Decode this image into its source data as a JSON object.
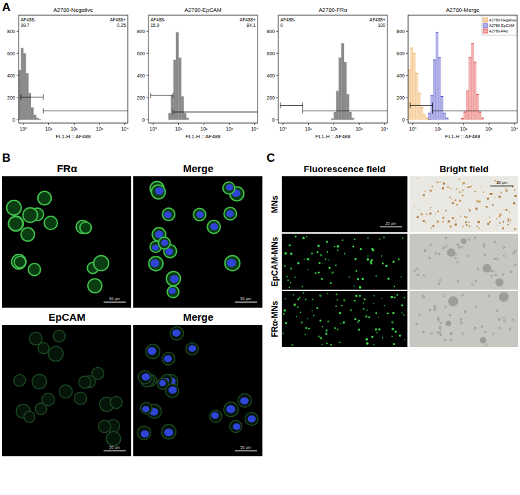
{
  "panel_labels": [
    "A",
    "B",
    "C"
  ],
  "chart_data": [
    {
      "type": "histogram",
      "title": "A2780-Negative",
      "x_label": "FL1-H :: AF488",
      "log": "x",
      "xlim": [
        0.65,
        13000
      ],
      "ylim": [
        -30,
        945
      ],
      "xticks": [
        {
          "value": 1,
          "label": "10⁰"
        },
        {
          "value": 10,
          "label": "10¹"
        },
        {
          "value": 100,
          "label": "10²"
        },
        {
          "value": 1000,
          "label": "10³"
        },
        {
          "value": 10000,
          "label": "10⁴"
        }
      ],
      "yticks": [
        0,
        200,
        400,
        600,
        800
      ],
      "bins": [
        0.631,
        0.794,
        1,
        1.259,
        1.585,
        1.995,
        2.512,
        3.162,
        3.981,
        5.012,
        6.31,
        7.943,
        10,
        12.59,
        15.85,
        19.95,
        25.12,
        31.62,
        39.81,
        50.12,
        63.1,
        79.43,
        100,
        125.9,
        158.5,
        199.5,
        251.2,
        316.2,
        398.1,
        501.2,
        631,
        794.3,
        1000,
        1259,
        1585
      ],
      "values": [
        450,
        650,
        600,
        420,
        240,
        110,
        45,
        15,
        5,
        0,
        0,
        0,
        0,
        0,
        0,
        0,
        0,
        0,
        0,
        0,
        0,
        0,
        0,
        0,
        0,
        0,
        0,
        0,
        0,
        0,
        0,
        0,
        0,
        0
      ],
      "color": "#8a8a8a",
      "gate": {
        "x": 6,
        "y": [
          205,
          80
        ]
      },
      "gate_labels": [
        {
          "label": "AF488-",
          "value": 99.7
        },
        {
          "label": "AF488+",
          "value": 0.25
        }
      ]
    },
    {
      "type": "histogram",
      "title": "A2780-EpCAM",
      "x_label": "FL1-H :: AF488",
      "log": "x",
      "xlim": [
        0.65,
        13000
      ],
      "ylim": [
        -30,
        945
      ],
      "xticks": [
        {
          "value": 1,
          "label": "10⁰"
        },
        {
          "value": 10,
          "label": "10¹"
        },
        {
          "value": 100,
          "label": "10²"
        },
        {
          "value": 1000,
          "label": "10³"
        },
        {
          "value": 10000,
          "label": "10⁴"
        }
      ],
      "yticks": [
        0,
        200,
        400,
        600,
        800
      ],
      "bins": [
        0.631,
        0.794,
        1,
        1.259,
        1.585,
        1.995,
        2.512,
        3.162,
        3.981,
        5.012,
        6.31,
        7.943,
        10,
        12.59,
        15.85,
        19.95,
        25.12,
        31.62,
        39.81,
        50.12,
        63.1,
        79.43,
        100,
        125.9,
        158.5,
        199.5,
        251.2,
        316.2,
        398.1,
        501.2,
        631,
        794.3,
        1000,
        1259,
        1585
      ],
      "values": [
        0,
        0,
        0,
        0,
        0,
        0,
        0,
        0,
        60,
        220,
        540,
        790,
        560,
        210,
        60,
        15,
        0,
        0,
        0,
        0,
        0,
        0,
        0,
        0,
        0,
        0,
        0,
        0,
        0,
        0,
        0,
        0,
        0,
        0
      ],
      "color": "#8a8a8a",
      "gate": {
        "x": 6,
        "y": [
          220,
          70
        ]
      },
      "gate_labels": [
        {
          "label": "AF488-",
          "value": 15.9
        },
        {
          "label": "AF488+",
          "value": 84.1
        }
      ]
    },
    {
      "type": "histogram",
      "title": "A2780-FRα",
      "x_label": "FL1-H :: AF488",
      "log": "x",
      "xlim": [
        0.65,
        13000
      ],
      "ylim": [
        -30,
        945
      ],
      "xticks": [
        {
          "value": 1,
          "label": "10⁰"
        },
        {
          "value": 10,
          "label": "10¹"
        },
        {
          "value": 100,
          "label": "10²"
        },
        {
          "value": 1000,
          "label": "10³"
        },
        {
          "value": 10000,
          "label": "10⁴"
        }
      ],
      "yticks": [
        0,
        200,
        400,
        600,
        800
      ],
      "bins": [
        0.631,
        0.794,
        1,
        1.259,
        1.585,
        1.995,
        2.512,
        3.162,
        3.981,
        5.012,
        6.31,
        7.943,
        10,
        12.59,
        15.85,
        19.95,
        25.12,
        31.62,
        39.81,
        50.12,
        63.1,
        79.43,
        100,
        125.9,
        158.5,
        199.5,
        251.2,
        316.2,
        398.1,
        501.2,
        631,
        794.3,
        1000,
        1259,
        1585
      ],
      "values": [
        0,
        0,
        0,
        0,
        0,
        0,
        0,
        0,
        0,
        0,
        0,
        0,
        0,
        0,
        0,
        0,
        0,
        0,
        0,
        0,
        0,
        10,
        70,
        260,
        560,
        690,
        520,
        230,
        70,
        15,
        0,
        0,
        0,
        0
      ],
      "color": "#8a8a8a",
      "gate": {
        "x": 6,
        "y": [
          130,
          80
        ]
      },
      "gate_labels": [
        {
          "label": "AF488-",
          "value": 0
        },
        {
          "label": "AF488+",
          "value": 100
        }
      ]
    },
    {
      "type": "histogram",
      "title": "A2780-Merge",
      "x_label": "FL1-H :: AF488",
      "log": "x",
      "xlim": [
        0.65,
        13000
      ],
      "ylim": [
        -30,
        945
      ],
      "xticks": [
        {
          "value": 1,
          "label": "10⁰"
        },
        {
          "value": 10,
          "label": "10¹"
        },
        {
          "value": 100,
          "label": "10²"
        },
        {
          "value": 1000,
          "label": "10³"
        },
        {
          "value": 10000,
          "label": "10⁴"
        }
      ],
      "yticks": [
        0,
        200,
        400,
        600,
        800
      ],
      "bins": [
        0.631,
        0.794,
        1,
        1.259,
        1.585,
        1.995,
        2.512,
        3.162,
        3.981,
        5.012,
        6.31,
        7.943,
        10,
        12.59,
        15.85,
        19.95,
        25.12,
        31.62,
        39.81,
        50.12,
        63.1,
        79.43,
        100,
        125.9,
        158.5,
        199.5,
        251.2,
        316.2,
        398.1,
        501.2,
        631,
        794.3,
        1000,
        1259,
        1585
      ],
      "series": [
        {
          "name": "A2780-Negative",
          "color": "#f0a040",
          "values": [
            450,
            650,
            600,
            420,
            240,
            110,
            45,
            15,
            5,
            0,
            0,
            0,
            0,
            0,
            0,
            0,
            0,
            0,
            0,
            0,
            0,
            0,
            0,
            0,
            0,
            0,
            0,
            0,
            0,
            0,
            0,
            0,
            0,
            0
          ]
        },
        {
          "name": "A2780-EpCAM",
          "color": "#4040c8",
          "values": [
            0,
            0,
            0,
            0,
            0,
            0,
            0,
            0,
            60,
            220,
            540,
            790,
            560,
            210,
            60,
            15,
            0,
            0,
            0,
            0,
            0,
            0,
            0,
            0,
            0,
            0,
            0,
            0,
            0,
            0,
            0,
            0,
            0,
            0
          ]
        },
        {
          "name": "A2780-FRα",
          "color": "#e03c3c",
          "values": [
            0,
            0,
            0,
            0,
            0,
            0,
            0,
            0,
            0,
            0,
            0,
            0,
            0,
            0,
            0,
            0,
            0,
            0,
            0,
            0,
            0,
            10,
            70,
            260,
            560,
            690,
            520,
            230,
            70,
            15,
            0,
            0,
            0,
            0
          ]
        }
      ],
      "legend": "top-right",
      "gate": {
        "x": 6,
        "y": [
          130,
          80
        ]
      }
    }
  ],
  "panel_b": {
    "rows": [
      {
        "label": "FRα",
        "merge_label": "Merge",
        "scale_bar": "50 μm"
      },
      {
        "label": "EpCAM",
        "merge_label": "Merge",
        "scale_bar": "50 μm"
      }
    ]
  },
  "panel_c": {
    "columns": [
      "Fluorescence field",
      "Bright field"
    ],
    "rows": [
      "MNs",
      "EpCAM-MNs",
      "FRα-MNs"
    ],
    "scale_bar": "20 μm"
  }
}
